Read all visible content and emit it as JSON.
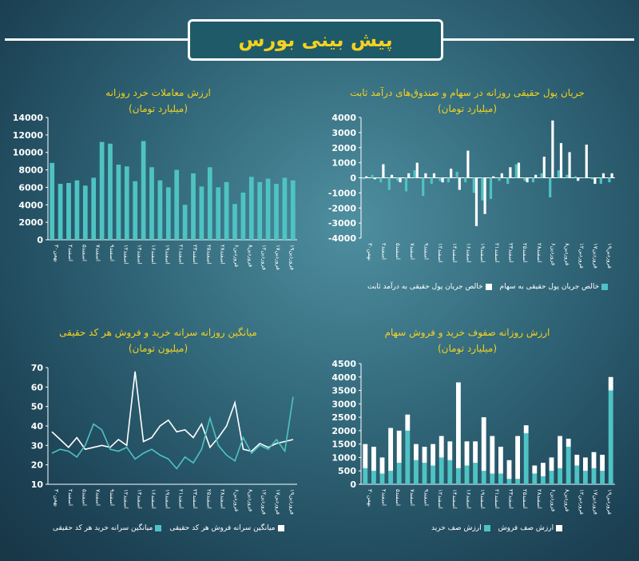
{
  "header": {
    "title": "پیش بینی بورس"
  },
  "colors": {
    "teal": "#4fc3c3",
    "white": "#ffffff",
    "title": "#f4d21f",
    "axis": "#ffffff"
  },
  "chart_data": [
    {
      "id": "c1",
      "type": "bar",
      "title": "ارزش معاملات خرد روزانه",
      "subtitle": "(میلیارد تومان)",
      "ylim": [
        0,
        14000
      ],
      "yticks": [
        "14000",
        "12000",
        "10000",
        "8000",
        "6000",
        "4000",
        "2000",
        "0"
      ],
      "xtick_labels": [
        "بهمن۳۰",
        "اسفند۲",
        "اسفند۵",
        "اسفند۷",
        "اسفند۹",
        "اسفند۱۲",
        "اسفند۱۴",
        "اسفند۱۶",
        "اسفند۱۹",
        "اسفند۲۱",
        "اسفند۲۳",
        "اسفند۲۵",
        "اسفند۲۸",
        "فروردین۶",
        "فروردین۸",
        "فروردین۱۲",
        "فروردین۱۷",
        "فروردین۱۹"
      ],
      "values": [
        8800,
        6400,
        6500,
        6800,
        6200,
        7100,
        11200,
        11000,
        8600,
        8400,
        6700,
        11300,
        8300,
        6800,
        6000,
        8000,
        4000,
        7600,
        6100,
        8300,
        6000,
        6600,
        4100,
        5400,
        7200,
        6600,
        7000,
        6400,
        7100,
        6800
      ]
    },
    {
      "id": "c2",
      "type": "bar",
      "title": "جریان پول حقیقی روزانه در سهام و صندوق‌های درآمد ثابت",
      "subtitle": "(میلیارد تومان)",
      "ylim": [
        -4000,
        4000
      ],
      "yticks": [
        "4000",
        "3000",
        "2000",
        "1000",
        "0",
        "-1000",
        "-2000",
        "-3000",
        "-4000"
      ],
      "xtick_labels": [
        "بهمن۳۰",
        "اسفند۲",
        "اسفند۵",
        "اسفند۷",
        "اسفند۹",
        "اسفند۱۲",
        "اسفند۱۴",
        "اسفند۱۶",
        "اسفند۱۹",
        "اسفند۲۱",
        "اسفند۲۳",
        "اسفند۲۵",
        "اسفند۲۸",
        "فروردین۶",
        "فروردین۸",
        "فروردین۱۲",
        "فروردین۱۷",
        "فروردین۱۹"
      ],
      "series": [
        {
          "name": "خالص جریان پول حقیقی به سهام",
          "values": [
            -100,
            200,
            -300,
            -800,
            -200,
            -900,
            500,
            -1200,
            -400,
            -200,
            -300,
            400,
            -300,
            -1000,
            -1500,
            -1400,
            -200,
            -400,
            900,
            -200,
            -300,
            300,
            -1300,
            500,
            200,
            100,
            0,
            -100,
            -400,
            -300
          ]
        },
        {
          "name": "خالص جریان پول حقیقی به درآمد ثابت",
          "values": [
            100,
            -100,
            900,
            200,
            -300,
            300,
            1000,
            300,
            300,
            -300,
            600,
            -800,
            1800,
            -3200,
            -2400,
            100,
            300,
            700,
            1000,
            -300,
            200,
            1400,
            3800,
            2300,
            1700,
            -200,
            2200,
            -400,
            300,
            300
          ]
        }
      ]
    },
    {
      "id": "c3",
      "type": "line",
      "title": "میانگین روزانه سرانه خرید و فروش هر کد حقیقی",
      "subtitle": "(میلیون تومان)",
      "ylim": [
        10,
        70
      ],
      "yticks": [
        "70",
        "60",
        "50",
        "40",
        "30",
        "20",
        "10"
      ],
      "xtick_labels": [
        "بهمن۳۰",
        "اسفند۲",
        "اسفند۵",
        "اسفند۷",
        "اسفند۹",
        "اسفند۱۲",
        "اسفند۱۴",
        "اسفند۱۶",
        "اسفند۱۹",
        "اسفند۲۱",
        "اسفند۲۳",
        "اسفند۲۵",
        "اسفند۲۸",
        "فروردین۶",
        "فروردین۸",
        "فروردین۱۲",
        "فروردین۱۷",
        "فروردین۱۹"
      ],
      "series": [
        {
          "name": "میانگین سرانه فروش هر کد حقیقی",
          "color": "#ffffff",
          "values": [
            37,
            33,
            29,
            34,
            28,
            29,
            30,
            29,
            33,
            30,
            68,
            32,
            34,
            40,
            43,
            37,
            38,
            34,
            41,
            29,
            34,
            40,
            52,
            28,
            27,
            31,
            29,
            31,
            32,
            33
          ]
        },
        {
          "name": "میانگین سرانه خرید هر کد حقیقی",
          "color": "#4fc3c3",
          "values": [
            26,
            28,
            27,
            24,
            30,
            41,
            38,
            28,
            27,
            29,
            23,
            26,
            28,
            25,
            23,
            18,
            24,
            21,
            28,
            44,
            30,
            25,
            22,
            34,
            26,
            30,
            28,
            33,
            27,
            55
          ]
        }
      ]
    },
    {
      "id": "c4",
      "type": "bar",
      "title": "ارزش روزانه صفوف خرید و فروش سهام",
      "subtitle": "(میلیارد تومان)",
      "ylim": [
        0,
        4500
      ],
      "yticks": [
        "4500",
        "4000",
        "3500",
        "3000",
        "2500",
        "2000",
        "1500",
        "1000",
        "500",
        "0"
      ],
      "xtick_labels": [
        "بهمن۳۰",
        "اسفند۲",
        "اسفند۵",
        "اسفند۷",
        "اسفند۹",
        "اسفند۱۲",
        "اسفند۱۴",
        "اسفند۱۶",
        "اسفند۱۹",
        "اسفند۲۱",
        "اسفند۲۳",
        "اسفند۲۵",
        "اسفند۲۸",
        "فروردین۶",
        "فروردین۸",
        "فروردین۱۲",
        "فروردین۱۷",
        "فروردین۱۹"
      ],
      "series": [
        {
          "name": "ارزش صف خرید",
          "values": [
            600,
            500,
            400,
            500,
            800,
            2000,
            900,
            800,
            700,
            1000,
            900,
            600,
            700,
            800,
            500,
            400,
            400,
            200,
            200,
            1900,
            400,
            300,
            500,
            600,
            1400,
            700,
            500,
            600,
            500,
            3500
          ]
        },
        {
          "name": "ارزش صف فروش",
          "values": [
            900,
            900,
            600,
            1600,
            1200,
            600,
            600,
            600,
            800,
            800,
            700,
            3200,
            900,
            800,
            2000,
            1400,
            1000,
            700,
            1600,
            300,
            300,
            500,
            500,
            1200,
            300,
            400,
            500,
            600,
            600,
            500
          ]
        }
      ]
    }
  ]
}
